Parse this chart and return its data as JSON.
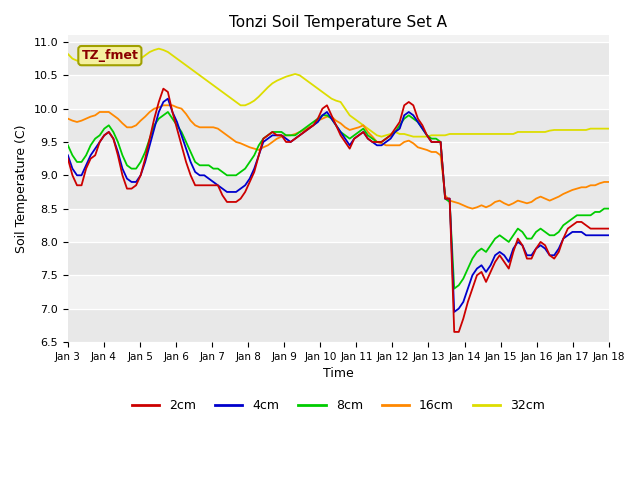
{
  "title": "Tonzi Soil Temperature Set A",
  "xlabel": "Time",
  "ylabel": "Soil Temperature (C)",
  "annotation": "TZ_fmet",
  "ylim": [
    6.5,
    11.1
  ],
  "colors": {
    "2cm": "#cc0000",
    "4cm": "#0000cc",
    "8cm": "#00cc00",
    "16cm": "#ff8800",
    "32cm": "#dddd00"
  },
  "bg_color": "#e8e8e8",
  "stripe_color": "#f2f2f2",
  "x_labels": [
    "Jan 3",
    "Jan 4",
    "Jan 5",
    "Jan 6",
    "Jan 7",
    "Jan 8",
    "Jan 9",
    "Jan 10",
    "Jan 11",
    "Jan 12",
    "Jan 13",
    "Jan 14",
    "Jan 15",
    "Jan 16",
    "Jan 17",
    "Jan 18"
  ],
  "data_2cm": [
    9.25,
    9.0,
    8.85,
    8.85,
    9.1,
    9.25,
    9.3,
    9.5,
    9.6,
    9.65,
    9.55,
    9.3,
    9.0,
    8.8,
    8.8,
    8.85,
    9.0,
    9.25,
    9.55,
    9.85,
    10.1,
    10.3,
    10.25,
    9.95,
    9.7,
    9.45,
    9.2,
    9.0,
    8.85,
    8.85,
    8.85,
    8.85,
    8.85,
    8.85,
    8.7,
    8.6,
    8.6,
    8.6,
    8.65,
    8.75,
    8.9,
    9.05,
    9.3,
    9.55,
    9.6,
    9.65,
    9.6,
    9.6,
    9.5,
    9.5,
    9.55,
    9.6,
    9.65,
    9.7,
    9.75,
    9.85,
    10.0,
    10.05,
    9.9,
    9.75,
    9.6,
    9.5,
    9.4,
    9.55,
    9.6,
    9.65,
    9.55,
    9.5,
    9.5,
    9.5,
    9.55,
    9.6,
    9.7,
    9.8,
    10.05,
    10.1,
    10.05,
    9.85,
    9.75,
    9.6,
    9.5,
    9.5,
    9.5,
    8.65,
    8.65,
    6.65,
    6.65,
    6.85,
    7.1,
    7.3,
    7.5,
    7.55,
    7.4,
    7.55,
    7.7,
    7.8,
    7.7,
    7.6,
    7.85,
    8.05,
    7.95,
    7.75,
    7.75,
    7.9,
    8.0,
    7.95,
    7.8,
    7.75,
    7.85,
    8.05,
    8.2,
    8.25,
    8.3,
    8.3,
    8.25,
    8.2,
    8.2,
    8.2,
    8.2,
    8.2
  ],
  "data_4cm": [
    9.3,
    9.1,
    9.0,
    9.0,
    9.15,
    9.3,
    9.4,
    9.5,
    9.6,
    9.65,
    9.55,
    9.35,
    9.1,
    8.95,
    8.9,
    8.9,
    9.0,
    9.2,
    9.45,
    9.7,
    9.95,
    10.1,
    10.15,
    9.95,
    9.8,
    9.6,
    9.4,
    9.2,
    9.05,
    9.0,
    9.0,
    8.95,
    8.9,
    8.85,
    8.8,
    8.75,
    8.75,
    8.75,
    8.8,
    8.85,
    8.95,
    9.1,
    9.3,
    9.5,
    9.55,
    9.6,
    9.6,
    9.6,
    9.55,
    9.5,
    9.55,
    9.6,
    9.65,
    9.7,
    9.75,
    9.8,
    9.9,
    9.95,
    9.85,
    9.75,
    9.65,
    9.55,
    9.45,
    9.55,
    9.6,
    9.65,
    9.55,
    9.5,
    9.45,
    9.45,
    9.5,
    9.55,
    9.65,
    9.7,
    9.9,
    9.95,
    9.9,
    9.8,
    9.7,
    9.6,
    9.5,
    9.5,
    9.5,
    8.65,
    8.65,
    6.95,
    7.0,
    7.1,
    7.3,
    7.5,
    7.6,
    7.65,
    7.55,
    7.65,
    7.8,
    7.85,
    7.8,
    7.7,
    7.9,
    8.0,
    7.95,
    7.8,
    7.8,
    7.9,
    7.95,
    7.9,
    7.8,
    7.8,
    7.9,
    8.05,
    8.1,
    8.15,
    8.15,
    8.15,
    8.1,
    8.1,
    8.1,
    8.1,
    8.1,
    8.1
  ],
  "data_8cm": [
    9.45,
    9.3,
    9.2,
    9.2,
    9.3,
    9.45,
    9.55,
    9.6,
    9.7,
    9.75,
    9.65,
    9.5,
    9.3,
    9.15,
    9.1,
    9.1,
    9.2,
    9.35,
    9.55,
    9.75,
    9.85,
    9.9,
    9.95,
    9.85,
    9.75,
    9.65,
    9.5,
    9.35,
    9.2,
    9.15,
    9.15,
    9.15,
    9.1,
    9.1,
    9.05,
    9.0,
    9.0,
    9.0,
    9.05,
    9.1,
    9.2,
    9.3,
    9.45,
    9.55,
    9.6,
    9.65,
    9.65,
    9.65,
    9.6,
    9.6,
    9.6,
    9.65,
    9.7,
    9.75,
    9.8,
    9.85,
    9.9,
    9.9,
    9.85,
    9.75,
    9.65,
    9.6,
    9.55,
    9.6,
    9.65,
    9.7,
    9.6,
    9.55,
    9.5,
    9.5,
    9.55,
    9.6,
    9.65,
    9.75,
    9.85,
    9.9,
    9.85,
    9.8,
    9.7,
    9.6,
    9.55,
    9.55,
    9.5,
    8.65,
    8.6,
    7.3,
    7.35,
    7.45,
    7.6,
    7.75,
    7.85,
    7.9,
    7.85,
    7.95,
    8.05,
    8.1,
    8.05,
    8.0,
    8.1,
    8.2,
    8.15,
    8.05,
    8.05,
    8.15,
    8.2,
    8.15,
    8.1,
    8.1,
    8.15,
    8.25,
    8.3,
    8.35,
    8.4,
    8.4,
    8.4,
    8.4,
    8.45,
    8.45,
    8.5,
    8.5
  ],
  "data_16cm": [
    9.85,
    9.82,
    9.8,
    9.82,
    9.85,
    9.88,
    9.9,
    9.95,
    9.95,
    9.95,
    9.9,
    9.85,
    9.78,
    9.72,
    9.72,
    9.75,
    9.82,
    9.88,
    9.95,
    10.0,
    10.02,
    10.05,
    10.05,
    10.05,
    10.02,
    10.0,
    9.92,
    9.82,
    9.75,
    9.72,
    9.72,
    9.72,
    9.72,
    9.7,
    9.65,
    9.6,
    9.55,
    9.5,
    9.48,
    9.45,
    9.42,
    9.4,
    9.38,
    9.42,
    9.45,
    9.5,
    9.55,
    9.58,
    9.6,
    9.6,
    9.62,
    9.65,
    9.68,
    9.72,
    9.75,
    9.82,
    9.85,
    9.88,
    9.88,
    9.82,
    9.78,
    9.72,
    9.68,
    9.7,
    9.72,
    9.75,
    9.65,
    9.58,
    9.5,
    9.48,
    9.45,
    9.45,
    9.45,
    9.45,
    9.5,
    9.52,
    9.48,
    9.42,
    9.4,
    9.38,
    9.35,
    9.35,
    9.3,
    8.7,
    8.62,
    8.6,
    8.58,
    8.55,
    8.52,
    8.5,
    8.52,
    8.55,
    8.52,
    8.55,
    8.6,
    8.62,
    8.58,
    8.55,
    8.58,
    8.62,
    8.6,
    8.58,
    8.6,
    8.65,
    8.68,
    8.65,
    8.62,
    8.65,
    8.68,
    8.72,
    8.75,
    8.78,
    8.8,
    8.82,
    8.82,
    8.85,
    8.85,
    8.88,
    8.9,
    8.9
  ],
  "data_32cm": [
    10.82,
    10.75,
    10.72,
    10.72,
    10.75,
    10.75,
    10.75,
    10.78,
    10.82,
    10.85,
    10.82,
    10.78,
    10.72,
    10.68,
    10.68,
    10.7,
    10.75,
    10.8,
    10.85,
    10.88,
    10.9,
    10.88,
    10.85,
    10.8,
    10.75,
    10.7,
    10.65,
    10.6,
    10.55,
    10.5,
    10.45,
    10.4,
    10.35,
    10.3,
    10.25,
    10.2,
    10.15,
    10.1,
    10.05,
    10.05,
    10.08,
    10.12,
    10.18,
    10.25,
    10.32,
    10.38,
    10.42,
    10.45,
    10.48,
    10.5,
    10.52,
    10.5,
    10.45,
    10.4,
    10.35,
    10.3,
    10.25,
    10.2,
    10.15,
    10.12,
    10.1,
    10.0,
    9.9,
    9.85,
    9.8,
    9.75,
    9.7,
    9.65,
    9.6,
    9.58,
    9.6,
    9.62,
    9.65,
    9.62,
    9.62,
    9.6,
    9.58,
    9.58,
    9.58,
    9.58,
    9.6,
    9.6,
    9.6,
    9.6,
    9.62,
    9.62,
    9.62,
    9.62,
    9.62,
    9.62,
    9.62,
    9.62,
    9.62,
    9.62,
    9.62,
    9.62,
    9.62,
    9.62,
    9.62,
    9.65,
    9.65,
    9.65,
    9.65,
    9.65,
    9.65,
    9.65,
    9.67,
    9.68,
    9.68,
    9.68,
    9.68,
    9.68,
    9.68,
    9.68,
    9.68,
    9.7,
    9.7,
    9.7,
    9.7,
    9.7
  ]
}
